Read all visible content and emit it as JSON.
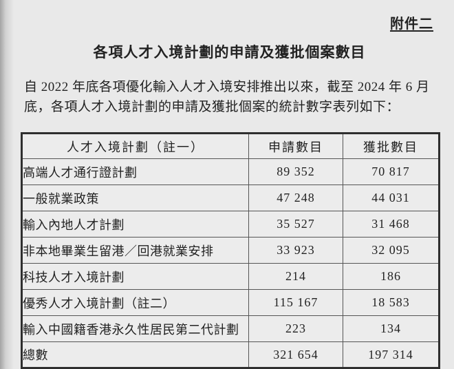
{
  "page": {
    "appendix_label": "附件二",
    "title": "各項人才入境計劃的申請及獲批個案數目",
    "intro_line1": "自 2022 年底各項優化輸入人才入境安排推出以來，截至 2024 年 6 月",
    "intro_line2": "底，各項人才入境計劃的申請及獲批個案的統計數字表列如下："
  },
  "table": {
    "headers": [
      "人才入境計劃（註一）",
      "申請數目",
      "獲批數目"
    ],
    "rows": [
      {
        "scheme": "高端人才通行證計劃",
        "applications": "89 352",
        "approved": "70 817"
      },
      {
        "scheme": "一般就業政策",
        "applications": "47 248",
        "approved": "44 031"
      },
      {
        "scheme": "輸入內地人才計劃",
        "applications": "35 527",
        "approved": "31 468"
      },
      {
        "scheme": "非本地畢業生留港／回港就業安排",
        "applications": "33 923",
        "approved": "32 095"
      },
      {
        "scheme": "科技人才入境計劃",
        "applications": "214",
        "approved": "186"
      },
      {
        "scheme": "優秀人才入境計劃（註二）",
        "applications": "115 167",
        "approved": "18 583"
      },
      {
        "scheme": "輸入中國籍香港永久性居民第二代計劃",
        "applications": "223",
        "approved": "134"
      },
      {
        "scheme": "總數",
        "applications": "321 654",
        "approved": "197 314"
      }
    ]
  },
  "colors": {
    "page_background": "#e9e9e9",
    "table_background": "#ececec",
    "text": "#222222",
    "border_outer": "#2e2e2e",
    "border_inner": "#555555"
  }
}
